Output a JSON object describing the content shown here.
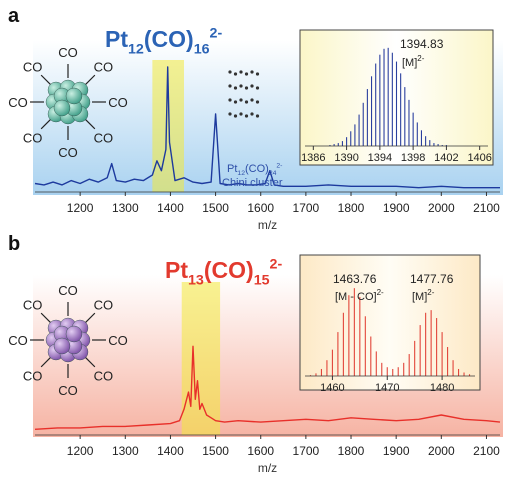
{
  "chart_data": [
    {
      "type": "line",
      "panel_label": "a",
      "title_parts": [
        "Pt",
        "12",
        "(CO)",
        "16",
        "2-"
      ],
      "ligand_label": "CO",
      "x_label": "m/z",
      "xlim": [
        1100,
        2130
      ],
      "xticks": [
        1200,
        1300,
        1400,
        1500,
        1600,
        1700,
        1800,
        1900,
        2000,
        2100
      ],
      "ylim": [
        0,
        100
      ],
      "x": [
        1100,
        1120,
        1140,
        1160,
        1180,
        1200,
        1220,
        1240,
        1260,
        1270,
        1280,
        1300,
        1320,
        1340,
        1360,
        1370,
        1380,
        1390,
        1394,
        1398,
        1410,
        1430,
        1450,
        1470,
        1490,
        1500,
        1510,
        1530,
        1550,
        1570,
        1590,
        1610,
        1620,
        1630,
        1650,
        1700,
        1750,
        1800,
        1850,
        1900,
        1950,
        2000,
        2050,
        2100,
        2130
      ],
      "values": [
        6,
        5,
        7,
        5,
        8,
        6,
        9,
        7,
        10,
        20,
        8,
        7,
        9,
        8,
        12,
        22,
        15,
        30,
        88,
        35,
        8,
        10,
        7,
        6,
        7,
        55,
        6,
        5,
        6,
        5,
        5,
        6,
        15,
        5,
        4,
        4,
        5,
        4,
        4,
        4,
        3,
        4,
        3,
        3,
        3
      ],
      "color": "#1d3a9e",
      "title_color": "#2b63b5",
      "highlight_xlim": [
        1360,
        1430
      ],
      "annotation_parts": [
        "Pt",
        "12",
        "(CO)",
        "24",
        "2-"
      ],
      "annotation_line2": "Chini cluster"
    },
    {
      "type": "stem",
      "xlim": [
        1385,
        1407
      ],
      "xticks": [
        1386,
        1390,
        1394,
        1398,
        1402,
        1406
      ],
      "ylim": [
        0,
        110
      ],
      "x": [
        1388,
        1388.5,
        1389,
        1389.5,
        1390,
        1390.5,
        1391,
        1391.5,
        1392,
        1392.5,
        1393,
        1393.5,
        1394,
        1394.5,
        1395,
        1395.5,
        1396,
        1396.5,
        1397,
        1397.5,
        1398,
        1398.5,
        1399,
        1399.5,
        1400,
        1400.5,
        1401,
        1401.5,
        1402
      ],
      "values": [
        1,
        2,
        3,
        5,
        9,
        15,
        22,
        32,
        44,
        58,
        71,
        84,
        93,
        99,
        100,
        95,
        86,
        74,
        60,
        47,
        34,
        24,
        16,
        10,
        6,
        3,
        2,
        1,
        1
      ],
      "color": "#2a3f9e",
      "labels": [
        {
          "mass": "1394.83",
          "ion": "[M]",
          "charge": "2-"
        }
      ]
    },
    {
      "type": "line",
      "panel_label": "b",
      "title_parts": [
        "Pt",
        "13",
        "(CO)",
        "15",
        "2-"
      ],
      "ligand_label": "CO",
      "x_label": "m/z",
      "xlim": [
        1100,
        2130
      ],
      "xticks": [
        1200,
        1300,
        1400,
        1500,
        1600,
        1700,
        1800,
        1900,
        2000,
        2100
      ],
      "ylim": [
        0,
        100
      ],
      "x": [
        1100,
        1150,
        1200,
        1250,
        1300,
        1350,
        1400,
        1420,
        1430,
        1440,
        1445,
        1450,
        1455,
        1460,
        1465,
        1470,
        1480,
        1490,
        1500,
        1520,
        1550,
        1600,
        1650,
        1700,
        1750,
        1800,
        1850,
        1900,
        1950,
        2000,
        2050,
        2100,
        2130
      ],
      "values": [
        4,
        5,
        5,
        6,
        6,
        7,
        8,
        10,
        18,
        30,
        20,
        62,
        25,
        38,
        18,
        22,
        14,
        12,
        10,
        9,
        10,
        9,
        10,
        11,
        10,
        12,
        11,
        10,
        11,
        14,
        11,
        10,
        9
      ],
      "color": "#e8302a",
      "title_color": "#e23a2e",
      "highlight_xlim": [
        1425,
        1510
      ]
    },
    {
      "type": "stem",
      "xlim": [
        1455,
        1486
      ],
      "xticks": [
        1460,
        1470,
        1480
      ],
      "ylim": [
        0,
        115
      ],
      "x": [
        1455,
        1456,
        1457,
        1458,
        1459,
        1460,
        1461,
        1462,
        1463,
        1464,
        1465,
        1466,
        1467,
        1468,
        1469,
        1470,
        1471,
        1472,
        1473,
        1474,
        1475,
        1476,
        1477,
        1478,
        1479,
        1480,
        1481,
        1482,
        1483,
        1484,
        1485
      ],
      "values": [
        0,
        1,
        3,
        8,
        18,
        30,
        50,
        72,
        92,
        100,
        90,
        68,
        45,
        28,
        15,
        10,
        8,
        10,
        15,
        25,
        40,
        58,
        72,
        75,
        66,
        50,
        33,
        18,
        8,
        4,
        2
      ],
      "color": "#e2453a",
      "labels": [
        {
          "mass": "1463.76",
          "ion": "[M - CO]",
          "charge": "2-"
        },
        {
          "mass": "1477.76",
          "ion": "[M]",
          "charge": "2-"
        }
      ]
    }
  ]
}
